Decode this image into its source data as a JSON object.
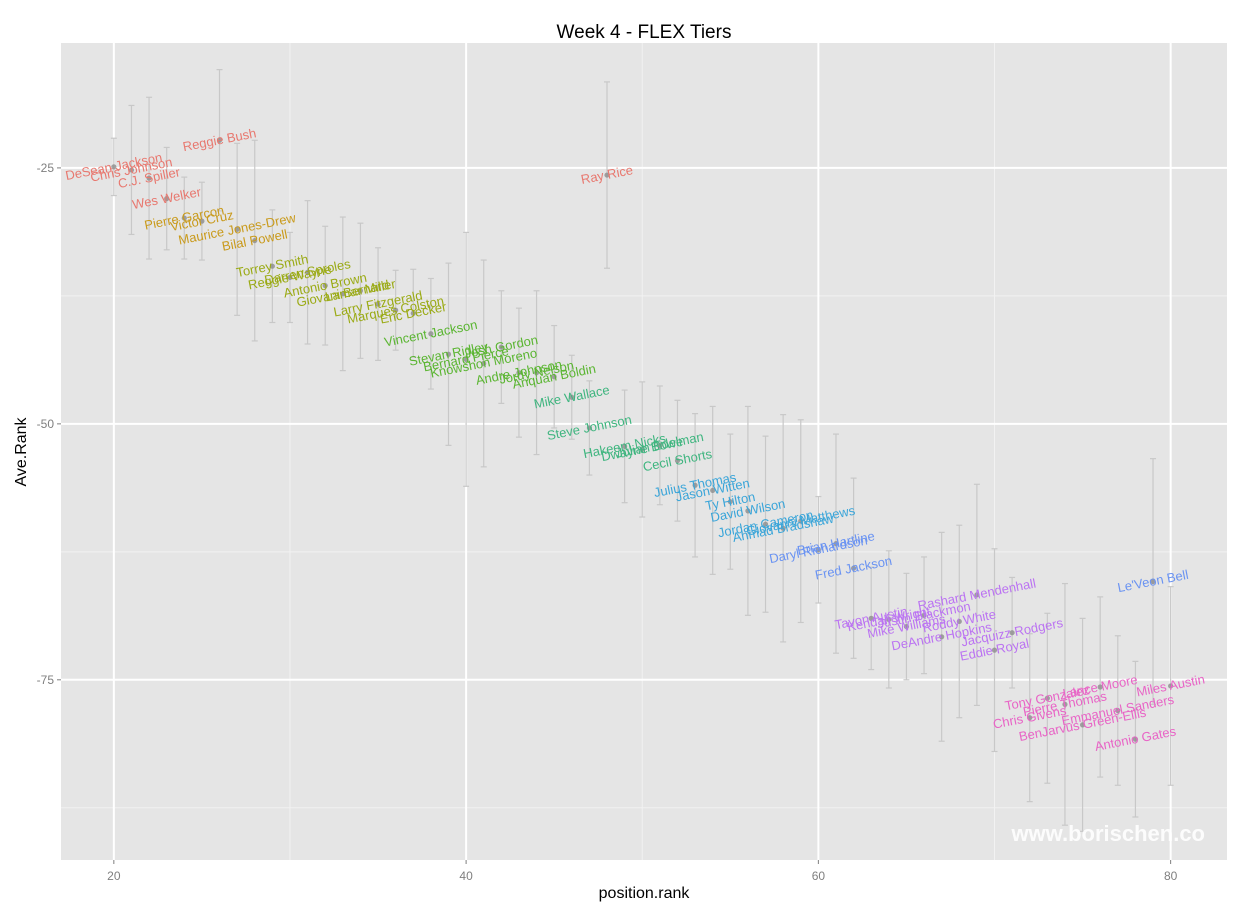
{
  "chart_data": {
    "type": "scatter",
    "title": "Week 4 - FLEX Tiers",
    "xlabel": "position.rank",
    "ylabel": "Ave.Rank",
    "xlim": [
      17,
      83.2
    ],
    "ylim": [
      -92.6,
      -12.8
    ],
    "x_ticks": [
      20,
      40,
      60,
      80
    ],
    "x_tick_labels": [
      "20",
      "40",
      "60",
      "80"
    ],
    "y_ticks": [
      -25,
      -50,
      -75
    ],
    "y_tick_labels": [
      "-25",
      "-50",
      "-75"
    ],
    "grid": true,
    "legend": "none",
    "watermark": "www.borischen.co",
    "colors": {
      "panel": "#e5e5e5",
      "grid_major": "#ffffff",
      "grid_minor": "#f2f2f2",
      "errorbar": "#c8c8c8",
      "point": "#8c8c8c"
    },
    "tier_colors": [
      "#e8786f",
      "#c99a1b",
      "#9aaa14",
      "#5ab531",
      "#3fb57f",
      "#3aa5d9",
      "#6a93f2",
      "#bb73f2",
      "#e864c6"
    ],
    "players": [
      {
        "name": "DeSean Jackson",
        "x": 20,
        "y": -24.9,
        "err": 2.8,
        "tier": 1
      },
      {
        "name": "Chris Johnson",
        "x": 21,
        "y": -25.2,
        "err": 6.3,
        "tier": 1
      },
      {
        "name": "C.J. Spiller",
        "x": 22,
        "y": -26.0,
        "err": 7.9,
        "tier": 1
      },
      {
        "name": "Wes Welker",
        "x": 23,
        "y": -28.0,
        "err": 5.0,
        "tier": 1
      },
      {
        "name": "Reggie Bush",
        "x": 26,
        "y": -22.3,
        "err": 6.9,
        "tier": 1
      },
      {
        "name": "Ray Rice",
        "x": 48,
        "y": -25.7,
        "err": 9.1,
        "tier": 1
      },
      {
        "name": "Pierre Garcon",
        "x": 24,
        "y": -29.9,
        "err": 4.0,
        "tier": 2
      },
      {
        "name": "Victor Cruz",
        "x": 25,
        "y": -30.2,
        "err": 3.8,
        "tier": 2
      },
      {
        "name": "Maurice Jones-Drew",
        "x": 27,
        "y": -31.0,
        "err": 8.4,
        "tier": 2
      },
      {
        "name": "Bilal Powell",
        "x": 28,
        "y": -32.1,
        "err": 9.8,
        "tier": 2
      },
      {
        "name": "Torrey Smith",
        "x": 29,
        "y": -34.6,
        "err": 5.5,
        "tier": 3
      },
      {
        "name": "Reggie Wayne",
        "x": 30,
        "y": -35.7,
        "err": 4.4,
        "tier": 3
      },
      {
        "name": "Darren Sproles",
        "x": 31,
        "y": -35.2,
        "err": 7.0,
        "tier": 3
      },
      {
        "name": "Antonio Brown",
        "x": 32,
        "y": -36.5,
        "err": 5.8,
        "tier": 3
      },
      {
        "name": "Giovani Bernard",
        "x": 33,
        "y": -37.3,
        "err": 7.5,
        "tier": 3
      },
      {
        "name": "Lamar Miller",
        "x": 34,
        "y": -37.0,
        "err": 6.6,
        "tier": 3
      },
      {
        "name": "Larry Fitzgerald",
        "x": 35,
        "y": -38.3,
        "err": 5.5,
        "tier": 3
      },
      {
        "name": "Marques Colston",
        "x": 36,
        "y": -38.9,
        "err": 3.9,
        "tier": 3
      },
      {
        "name": "Eric Decker",
        "x": 37,
        "y": -39.2,
        "err": 4.3,
        "tier": 3
      },
      {
        "name": "Vincent Jackson",
        "x": 38,
        "y": -41.2,
        "err": 5.4,
        "tier": 4
      },
      {
        "name": "Stevan Ridley",
        "x": 39,
        "y": -43.2,
        "err": 8.9,
        "tier": 4
      },
      {
        "name": "Bernard Pierce",
        "x": 40,
        "y": -43.7,
        "err": 12.4,
        "tier": 4
      },
      {
        "name": "Knowshon Moreno",
        "x": 41,
        "y": -44.1,
        "err": 10.1,
        "tier": 4
      },
      {
        "name": "Josh Gordon",
        "x": 42,
        "y": -42.5,
        "err": 5.5,
        "tier": 4
      },
      {
        "name": "Andre Johnson",
        "x": 43,
        "y": -45.0,
        "err": 6.3,
        "tier": 4
      },
      {
        "name": "Jordy Nelson",
        "x": 44,
        "y": -45.0,
        "err": 8.0,
        "tier": 4
      },
      {
        "name": "Anquan Boldin",
        "x": 45,
        "y": -45.4,
        "err": 5.0,
        "tier": 4
      },
      {
        "name": "Mike Wallace",
        "x": 46,
        "y": -47.4,
        "err": 4.1,
        "tier": 5
      },
      {
        "name": "Steve Johnson",
        "x": 47,
        "y": -50.4,
        "err": 4.6,
        "tier": 5
      },
      {
        "name": "Hakeem Nicks",
        "x": 49,
        "y": -52.2,
        "err": 5.5,
        "tier": 5
      },
      {
        "name": "Dwayne Bowe",
        "x": 50,
        "y": -52.5,
        "err": 6.6,
        "tier": 5
      },
      {
        "name": "Julian Edelman",
        "x": 51,
        "y": -52.1,
        "err": 5.8,
        "tier": 5
      },
      {
        "name": "Cecil Shorts",
        "x": 52,
        "y": -53.6,
        "err": 5.9,
        "tier": 5
      },
      {
        "name": "Julius Thomas",
        "x": 53,
        "y": -56.0,
        "err": 7.0,
        "tier": 6
      },
      {
        "name": "Jason Witten",
        "x": 54,
        "y": -56.5,
        "err": 8.2,
        "tier": 6
      },
      {
        "name": "Ty Hilton",
        "x": 55,
        "y": -57.6,
        "err": 6.6,
        "tier": 6
      },
      {
        "name": "David Wilson",
        "x": 56,
        "y": -58.5,
        "err": 10.2,
        "tier": 6
      },
      {
        "name": "Jordan Cameron",
        "x": 57,
        "y": -59.8,
        "err": 8.6,
        "tier": 6
      },
      {
        "name": "Ahmad Bradshaw",
        "x": 58,
        "y": -60.2,
        "err": 11.1,
        "tier": 6
      },
      {
        "name": "Giovanni Matthews",
        "x": 59,
        "y": -59.5,
        "err": 9.9,
        "tier": 6
      },
      {
        "name": "Daryl Richardson",
        "x": 60,
        "y": -62.3,
        "err": 5.2,
        "tier": 7
      },
      {
        "name": "Brian Hartline",
        "x": 61,
        "y": -61.7,
        "err": 10.7,
        "tier": 7
      },
      {
        "name": "Fred Jackson",
        "x": 62,
        "y": -64.1,
        "err": 8.8,
        "tier": 7
      },
      {
        "name": "Le'Veon Bell",
        "x": 79,
        "y": -65.4,
        "err": 12.0,
        "tier": 7
      },
      {
        "name": "Tavon Austin",
        "x": 63,
        "y": -69.0,
        "err": 5.0,
        "tier": 8
      },
      {
        "name": "Kendall Wright",
        "x": 64,
        "y": -69.1,
        "err": 6.7,
        "tier": 8
      },
      {
        "name": "Mike Williams",
        "x": 65,
        "y": -69.8,
        "err": 5.2,
        "tier": 8
      },
      {
        "name": "Justin Blackmon",
        "x": 66,
        "y": -68.7,
        "err": 5.7,
        "tier": 8
      },
      {
        "name": "DeAndre Hopkins",
        "x": 67,
        "y": -70.8,
        "err": 10.2,
        "tier": 8
      },
      {
        "name": "Roddy White",
        "x": 68,
        "y": -69.3,
        "err": 9.4,
        "tier": 8
      },
      {
        "name": "Rashard Mendenhall",
        "x": 69,
        "y": -66.7,
        "err": 10.8,
        "tier": 8
      },
      {
        "name": "Eddie Royal",
        "x": 70,
        "y": -72.1,
        "err": 9.9,
        "tier": 8
      },
      {
        "name": "Jacquizz Rodgers",
        "x": 71,
        "y": -70.4,
        "err": 5.4,
        "tier": 8
      },
      {
        "name": "Chris Givens",
        "x": 72,
        "y": -78.7,
        "err": 8.2,
        "tier": 9
      },
      {
        "name": "Tony Gonzalez",
        "x": 73,
        "y": -76.8,
        "err": 8.3,
        "tier": 9
      },
      {
        "name": "Pierre Thomas",
        "x": 74,
        "y": -77.4,
        "err": 11.8,
        "tier": 9
      },
      {
        "name": "BenJarvus Green-Ellis",
        "x": 75,
        "y": -79.4,
        "err": 10.4,
        "tier": 9
      },
      {
        "name": "Lance Moore",
        "x": 76,
        "y": -75.7,
        "err": 8.8,
        "tier": 9
      },
      {
        "name": "Emmanuel Sanders",
        "x": 77,
        "y": -78.0,
        "err": 7.3,
        "tier": 9
      },
      {
        "name": "Antonio Gates",
        "x": 78,
        "y": -80.8,
        "err": 7.6,
        "tier": 9
      },
      {
        "name": "Miles Austin",
        "x": 80,
        "y": -75.6,
        "err": 9.7,
        "tier": 9
      }
    ]
  }
}
